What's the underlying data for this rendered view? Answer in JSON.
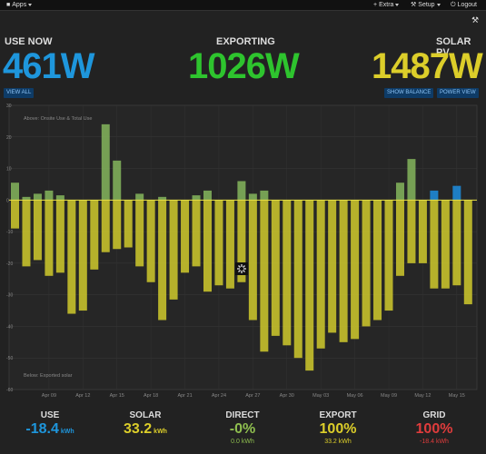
{
  "nav": {
    "apps": "Apps",
    "extra": "Extra",
    "setup": "Setup",
    "logout": "Logout"
  },
  "stats": {
    "use": {
      "label": "USE NOW",
      "value": "461W",
      "color": "#1e96dc"
    },
    "export": {
      "label": "EXPORTING",
      "value": "1026W",
      "color": "#2ec42e"
    },
    "solar": {
      "label": "SOLAR PV",
      "value": "1487W",
      "color": "#dcce2a"
    }
  },
  "buttons": {
    "view_all": "VIEW ALL",
    "show_balance": "SHOW BALANCE",
    "power_view": "POWER VIEW"
  },
  "chart_data": {
    "type": "bar",
    "title": "",
    "annotations": {
      "above": "Above: Onsite Use & Total Use",
      "below": "Below: Exported solar"
    },
    "ylim": [
      -60,
      30
    ],
    "yticks": [
      30,
      20,
      10,
      0,
      -10,
      -20,
      -30,
      -40,
      -50,
      -60
    ],
    "xticks": [
      "Apr 09",
      "Apr 12",
      "Apr 15",
      "Apr 18",
      "Apr 21",
      "Apr 24",
      "Apr 27",
      "Apr 30",
      "May 03",
      "May 06",
      "May 09",
      "May 12",
      "May 15"
    ],
    "categories": [
      "Apr 06",
      "Apr 07",
      "Apr 08",
      "Apr 09",
      "Apr 10",
      "Apr 11",
      "Apr 12",
      "Apr 13",
      "Apr 14",
      "Apr 15",
      "Apr 16",
      "Apr 17",
      "Apr 18",
      "Apr 19",
      "Apr 20",
      "Apr 21",
      "Apr 22",
      "Apr 23",
      "Apr 24",
      "Apr 25",
      "Apr 26",
      "Apr 27",
      "Apr 28",
      "Apr 29",
      "Apr 30",
      "May 01",
      "May 02",
      "May 03",
      "May 04",
      "May 05",
      "May 06",
      "May 07",
      "May 08",
      "May 09",
      "May 10",
      "May 11",
      "May 12",
      "May 13",
      "May 14",
      "May 15",
      "May 16"
    ],
    "series": [
      {
        "name": "Onsite use",
        "color": "#7fae5a",
        "values": [
          5.5,
          1,
          2,
          3,
          1.5,
          0,
          0,
          0,
          24,
          12.5,
          0,
          2,
          0,
          1,
          0,
          0,
          1.5,
          3,
          0,
          0,
          6,
          2,
          3,
          0,
          0,
          0,
          0,
          0,
          0,
          0,
          0,
          0,
          0,
          0,
          5.5,
          13,
          0,
          0,
          0,
          0,
          0
        ]
      },
      {
        "name": "Grid",
        "color": "#1e88d6",
        "values": [
          0,
          0,
          0,
          0,
          0,
          0,
          0,
          0,
          0,
          0,
          0,
          0,
          0,
          0,
          0,
          0,
          0,
          0,
          0,
          0,
          0,
          0,
          0,
          0,
          0,
          0,
          0,
          0,
          0,
          0,
          0,
          0,
          0,
          0,
          0,
          0,
          0,
          3,
          0,
          4.5,
          0
        ]
      },
      {
        "name": "Solar",
        "color": "#c7c12c",
        "values": [
          -9,
          -21,
          -19,
          -24,
          -23,
          -36,
          -35,
          -22,
          -16.5,
          -15.5,
          -15,
          -21,
          -26,
          -38,
          -31.5,
          -23,
          -21,
          -29,
          -27,
          -28,
          -26,
          -38,
          -48,
          -43,
          -46,
          -50,
          -54,
          -47,
          -42,
          -45,
          -44,
          -40,
          -38,
          -35,
          -24,
          -20,
          -20,
          -28,
          -28,
          -27,
          -33
        ]
      }
    ]
  },
  "bottom": {
    "use": {
      "label": "USE",
      "value": "-18.4",
      "unit": "kWh",
      "color": "#1e96dc"
    },
    "solar": {
      "label": "SOLAR",
      "value": "33.2",
      "unit": "kWh",
      "color": "#dcce2a"
    },
    "direct": {
      "label": "DIRECT",
      "value": "-0%",
      "sub": "0.0 kWh",
      "color": "#8fbf4f"
    },
    "export": {
      "label": "EXPORT",
      "value": "100%",
      "sub": "33.2 kWh",
      "color": "#dcce2a"
    },
    "grid": {
      "label": "GRID",
      "value": "100%",
      "sub": "-18.4 kWh",
      "color": "#e03c3c"
    }
  }
}
